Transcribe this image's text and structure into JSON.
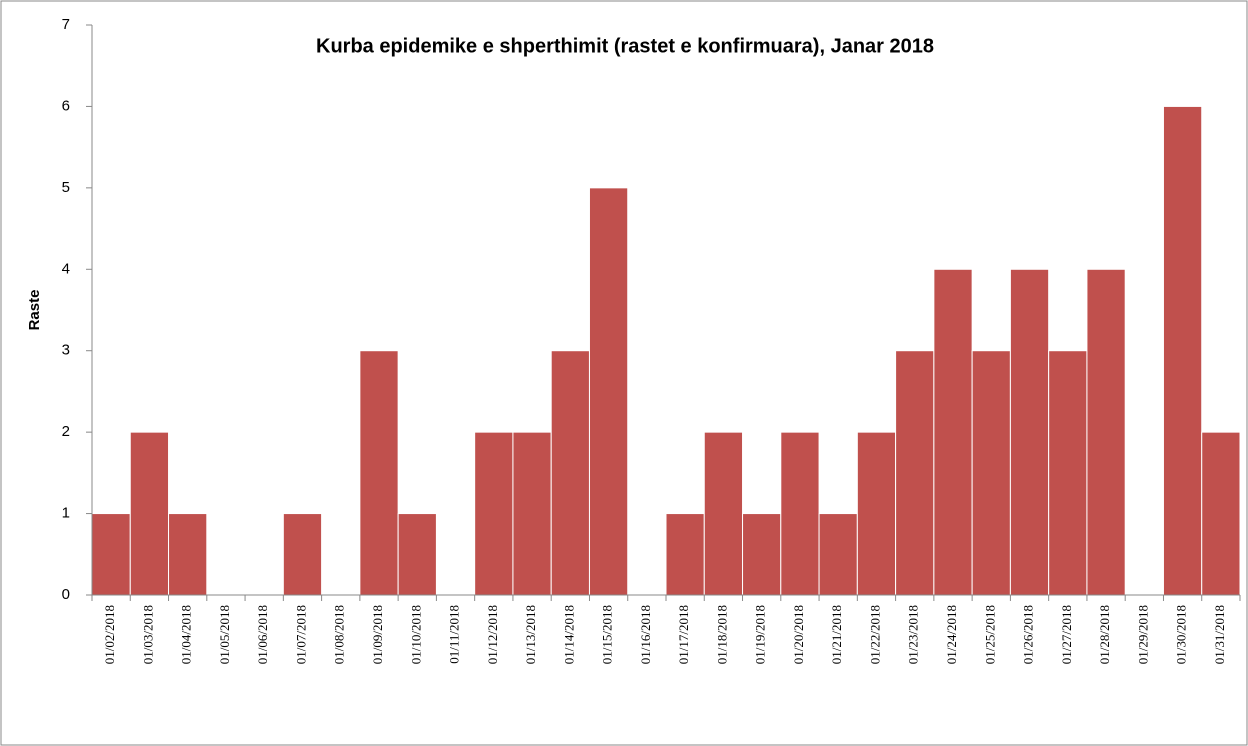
{
  "chart_data": {
    "type": "bar",
    "title": "Kurba epidemike e shperthimit (rastet e konfirmuara), Janar 2018",
    "y_label": "Raste",
    "categories": [
      "01/02/2018",
      "01/03/2018",
      "01/04/2018",
      "01/05/2018",
      "01/06/2018",
      "01/07/2018",
      "01/08/2018",
      "01/09/2018",
      "01/10/2018",
      "01/11/2018",
      "01/12/2018",
      "01/13/2018",
      "01/14/2018",
      "01/15/2018",
      "01/16/2018",
      "01/17/2018",
      "01/18/2018",
      "01/19/2018",
      "01/20/2018",
      "01/21/2018",
      "01/22/2018",
      "01/23/2018",
      "01/24/2018",
      "01/25/2018",
      "01/26/2018",
      "01/27/2018",
      "01/28/2018",
      "01/29/2018",
      "01/30/2018",
      "01/31/2018"
    ],
    "values": [
      1,
      2,
      1,
      0,
      0,
      1,
      0,
      3,
      1,
      0,
      2,
      2,
      3,
      5,
      0,
      1,
      2,
      1,
      2,
      1,
      2,
      3,
      4,
      3,
      4,
      3,
      4,
      0,
      6,
      2
    ],
    "color": "#c0504d",
    "ylim": [
      0,
      7
    ],
    "yticks": [
      0,
      1,
      2,
      3,
      4,
      5,
      6,
      7
    ],
    "grid": false
  }
}
